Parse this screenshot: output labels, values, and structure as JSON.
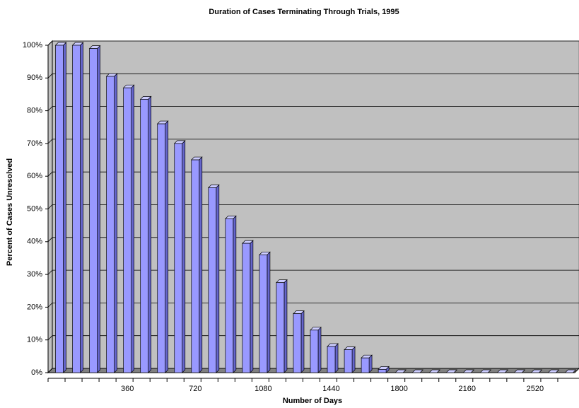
{
  "chart_data": {
    "type": "bar",
    "title": "Duration of Cases Terminating Through Trials, 1995",
    "x_label": "Number of Days",
    "y_label": "Percent of Cases Unresolved",
    "categories": [
      null,
      null,
      null,
      null,
      "360",
      null,
      null,
      null,
      "720",
      null,
      null,
      null,
      "1080",
      null,
      null,
      null,
      "1440",
      null,
      null,
      null,
      "1800",
      null,
      null,
      null,
      "2160",
      null,
      null,
      null,
      "2520",
      null,
      null
    ],
    "values": [
      100,
      100,
      99,
      90.5,
      87,
      83.5,
      76,
      70,
      65,
      56.5,
      47,
      39.5,
      36,
      27.5,
      18,
      13,
      8,
      7,
      4.5,
      1,
      0,
      0,
      0,
      0,
      0,
      0,
      0,
      0,
      0,
      0,
      0
    ],
    "color": "#9999ff",
    "ylim": [
      0,
      100
    ],
    "yticks": [
      {
        "value": 0,
        "label": "0%"
      },
      {
        "value": 10,
        "label": "10%"
      },
      {
        "value": 20,
        "label": "20%"
      },
      {
        "value": 30,
        "label": "30%"
      },
      {
        "value": 40,
        "label": "40%"
      },
      {
        "value": 50,
        "label": "50%"
      },
      {
        "value": 60,
        "label": "60%"
      },
      {
        "value": 70,
        "label": "70%"
      },
      {
        "value": 80,
        "label": "80%"
      },
      {
        "value": 90,
        "label": "90%"
      },
      {
        "value": 100,
        "label": "100%"
      }
    ],
    "grid": true
  }
}
